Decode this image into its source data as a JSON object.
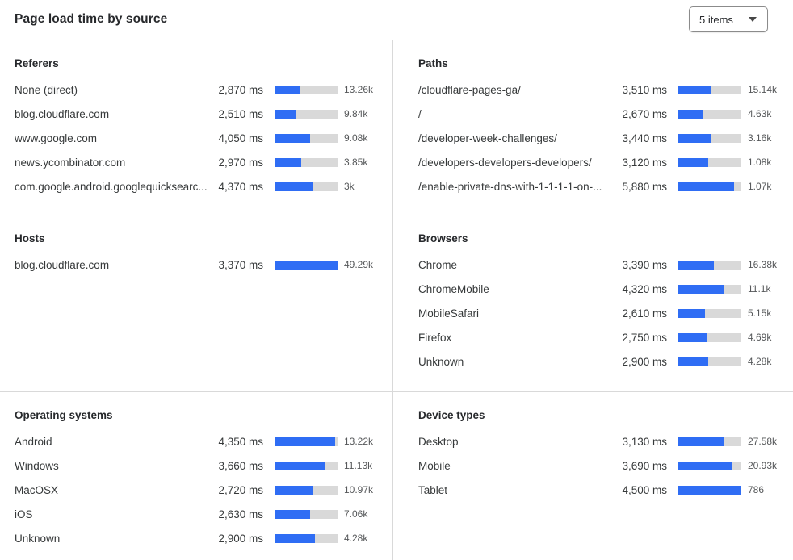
{
  "header": {
    "title": "Page load time by source",
    "items_dropdown": {
      "label": "5 items"
    }
  },
  "colors": {
    "bar_fill": "#2f6df4",
    "bar_track": "#d9d9d9",
    "divider": "#d9d9d9",
    "heading": "#27292c",
    "text_primary": "#36393a",
    "text_secondary": "#56585a"
  },
  "panels": [
    {
      "id": "referers",
      "title": "Referers",
      "rows": [
        {
          "label": "None (direct)",
          "value": "2,870 ms",
          "count": "13.26k",
          "bar_pct": 40
        },
        {
          "label": "blog.cloudflare.com",
          "value": "2,510 ms",
          "count": "9.84k",
          "bar_pct": 35
        },
        {
          "label": "www.google.com",
          "value": "4,050 ms",
          "count": "9.08k",
          "bar_pct": 56
        },
        {
          "label": "news.ycombinator.com",
          "value": "2,970 ms",
          "count": "3.85k",
          "bar_pct": 42
        },
        {
          "label": "com.google.android.googlequicksearc...",
          "value": "4,370 ms",
          "count": "3k",
          "bar_pct": 60
        }
      ]
    },
    {
      "id": "paths",
      "title": "Paths",
      "rows": [
        {
          "label": "/cloudflare-pages-ga/",
          "value": "3,510 ms",
          "count": "15.14k",
          "bar_pct": 53
        },
        {
          "label": "/",
          "value": "2,670 ms",
          "count": "4.63k",
          "bar_pct": 39
        },
        {
          "label": "/developer-week-challenges/",
          "value": "3,440 ms",
          "count": "3.16k",
          "bar_pct": 52
        },
        {
          "label": "/developers-developers-developers/",
          "value": "3,120 ms",
          "count": "1.08k",
          "bar_pct": 47
        },
        {
          "label": "/enable-private-dns-with-1-1-1-1-on-...",
          "value": "5,880 ms",
          "count": "1.07k",
          "bar_pct": 88
        }
      ]
    },
    {
      "id": "hosts",
      "title": "Hosts",
      "rows": [
        {
          "label": "blog.cloudflare.com",
          "value": "3,370 ms",
          "count": "49.29k",
          "bar_pct": 100
        }
      ]
    },
    {
      "id": "browsers",
      "title": "Browsers",
      "rows": [
        {
          "label": "Chrome",
          "value": "3,390 ms",
          "count": "16.38k",
          "bar_pct": 57
        },
        {
          "label": "ChromeMobile",
          "value": "4,320 ms",
          "count": "11.1k",
          "bar_pct": 73
        },
        {
          "label": "MobileSafari",
          "value": "2,610 ms",
          "count": "5.15k",
          "bar_pct": 42
        },
        {
          "label": "Firefox",
          "value": "2,750 ms",
          "count": "4.69k",
          "bar_pct": 45
        },
        {
          "label": "Unknown",
          "value": "2,900 ms",
          "count": "4.28k",
          "bar_pct": 48
        }
      ]
    },
    {
      "id": "operating-systems",
      "title": "Operating systems",
      "rows": [
        {
          "label": "Android",
          "value": "4,350 ms",
          "count": "13.22k",
          "bar_pct": 96
        },
        {
          "label": "Windows",
          "value": "3,660 ms",
          "count": "11.13k",
          "bar_pct": 80
        },
        {
          "label": "MacOSX",
          "value": "2,720 ms",
          "count": "10.97k",
          "bar_pct": 60
        },
        {
          "label": "iOS",
          "value": "2,630 ms",
          "count": "7.06k",
          "bar_pct": 57
        },
        {
          "label": "Unknown",
          "value": "2,900 ms",
          "count": "4.28k",
          "bar_pct": 64
        }
      ]
    },
    {
      "id": "device-types",
      "title": "Device types",
      "rows": [
        {
          "label": "Desktop",
          "value": "3,130 ms",
          "count": "27.58k",
          "bar_pct": 72
        },
        {
          "label": "Mobile",
          "value": "3,690 ms",
          "count": "20.93k",
          "bar_pct": 84
        },
        {
          "label": "Tablet",
          "value": "4,500 ms",
          "count": "786",
          "bar_pct": 100
        }
      ]
    }
  ]
}
